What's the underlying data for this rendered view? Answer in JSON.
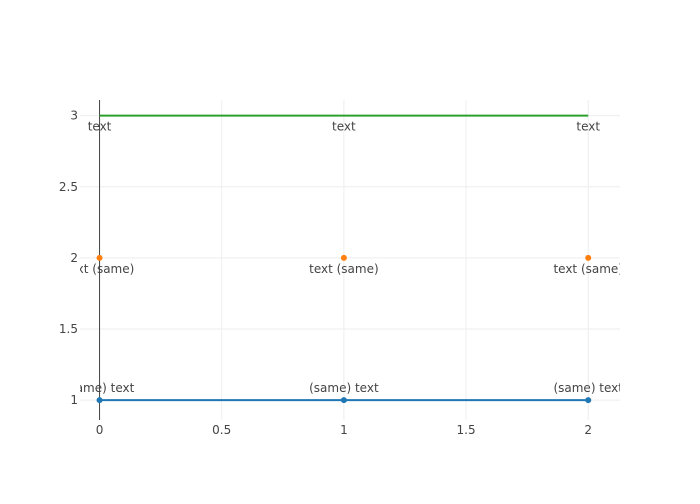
{
  "chart_data": {
    "type": "line",
    "x": [
      0,
      1,
      2
    ],
    "xlim": [
      -0.08,
      2.13
    ],
    "ylim": [
      0.86,
      3.11
    ],
    "xticks": [
      0,
      0.5,
      1,
      1.5,
      2
    ],
    "xtick_labels": [
      "0",
      "0.5",
      "1",
      "1.5",
      "2"
    ],
    "yticks": [
      1,
      1.5,
      2,
      2.5,
      3
    ],
    "ytick_labels": [
      "1",
      "1.5",
      "2",
      "2.5",
      "3"
    ],
    "grid": true,
    "legend": "none",
    "series": [
      {
        "mode": "lines+markers+text",
        "y": [
          1,
          1,
          1
        ],
        "color": "#1f77b4",
        "text": [
          "(same) text",
          "(same) text",
          "(same) text"
        ],
        "text_position": "top"
      },
      {
        "mode": "markers+text",
        "y": [
          2,
          2,
          2
        ],
        "color": "#ff7f0e",
        "text": [
          "text (same)",
          "text (same)",
          "text (same)"
        ],
        "text_position": "bottom"
      },
      {
        "mode": "lines+text",
        "y": [
          3,
          3,
          3
        ],
        "color": "#2ca02c",
        "text": [
          "text",
          "text",
          "text"
        ],
        "text_position": "bottom"
      }
    ]
  }
}
